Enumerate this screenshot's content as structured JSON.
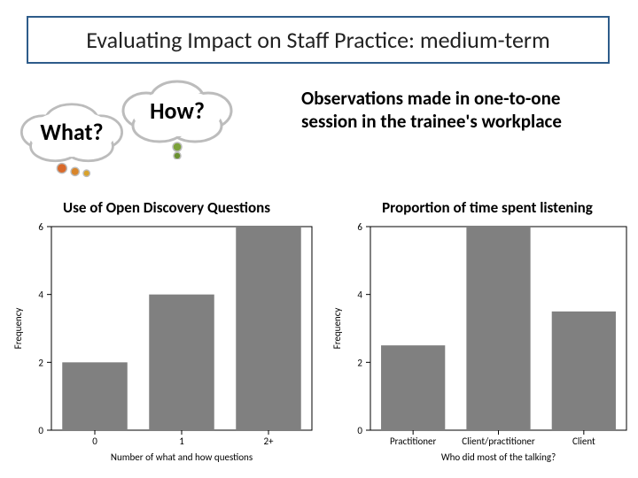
{
  "title": "Evaluating Impact on Staff Practice: medium-term",
  "title_border_color": "#2e5c8a",
  "clouds": {
    "what": {
      "label": "What?",
      "fill": "#ffffff",
      "stroke": "#bcbcbc"
    },
    "how": {
      "label": "How?",
      "fill": "#ffffff",
      "stroke": "#bcbcbc"
    },
    "dot_colors_what": [
      "#d96a2b",
      "#d9862b",
      "#d9a22b"
    ],
    "dot_colors_how": [
      "#7ca23a",
      "#6a9030",
      "#587e26"
    ]
  },
  "observation_text": "Observations made in one-to-one session in the trainee's workplace",
  "chart_left": {
    "type": "bar",
    "title": "Use of Open Discovery Questions",
    "xlabel": "Number of what and how questions",
    "ylabel": "Frequency",
    "categories": [
      "0",
      "1",
      "2+"
    ],
    "values": [
      2,
      4,
      6
    ],
    "ylim": [
      0,
      6
    ],
    "yticks": [
      0,
      2,
      4,
      6
    ],
    "bar_color": "#808080",
    "bar_width": 0.75,
    "background_color": "#ffffff",
    "axis_fontsize": 11,
    "label_fontsize": 11
  },
  "chart_right": {
    "type": "bar",
    "title": "Proportion of time spent listening",
    "xlabel": "Who did most of the talking?",
    "ylabel": "Frequency",
    "categories": [
      "Practitioner",
      "Client/practitioner",
      "Client"
    ],
    "values": [
      2.5,
      6,
      3.5
    ],
    "ylim": [
      0,
      6
    ],
    "yticks": [
      0,
      2,
      4,
      6
    ],
    "bar_color": "#808080",
    "bar_width": 0.75,
    "background_color": "#ffffff",
    "axis_fontsize": 11,
    "label_fontsize": 11
  }
}
